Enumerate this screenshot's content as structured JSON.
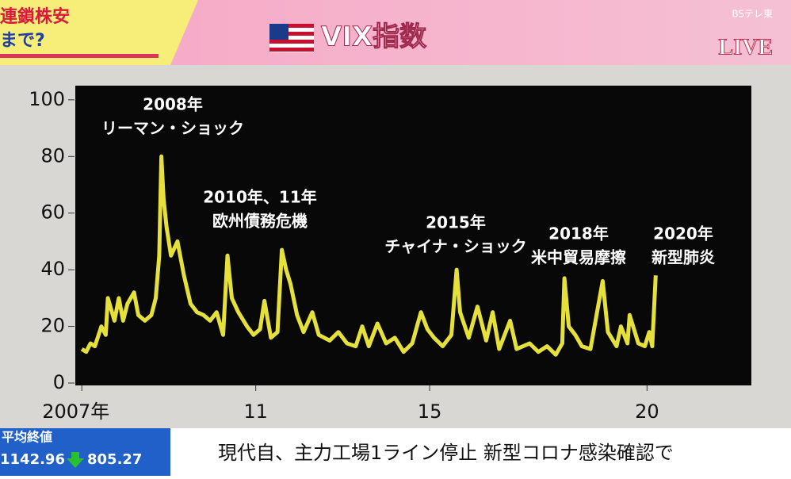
{
  "header": {
    "left_top": "連鎖株安",
    "left_bottom": "まで?",
    "live": "LIVE",
    "channel": "BSテレ東"
  },
  "chart_data": {
    "type": "line",
    "title": "VIX指数",
    "color": "#e6e03a",
    "x": [
      2007.0,
      2007.1,
      2007.2,
      2007.3,
      2007.45,
      2007.55,
      2007.6,
      2007.75,
      2007.85,
      2007.95,
      2008.05,
      2008.2,
      2008.3,
      2008.45,
      2008.6,
      2008.7,
      2008.78,
      2008.83,
      2008.88,
      2008.95,
      2009.05,
      2009.2,
      2009.35,
      2009.5,
      2009.65,
      2009.8,
      2009.95,
      2010.1,
      2010.25,
      2010.35,
      2010.45,
      2010.6,
      2010.8,
      2010.95,
      2011.1,
      2011.2,
      2011.35,
      2011.5,
      2011.6,
      2011.7,
      2011.8,
      2011.95,
      2012.1,
      2012.3,
      2012.45,
      2012.7,
      2012.9,
      2013.1,
      2013.3,
      2013.45,
      2013.6,
      2013.8,
      2014.0,
      2014.2,
      2014.4,
      2014.6,
      2014.8,
      2014.95,
      2015.1,
      2015.3,
      2015.5,
      2015.62,
      2015.7,
      2015.9,
      2016.1,
      2016.3,
      2016.45,
      2016.6,
      2016.85,
      2017.0,
      2017.3,
      2017.5,
      2017.7,
      2017.9,
      2018.05,
      2018.1,
      2018.2,
      2018.35,
      2018.5,
      2018.7,
      2018.85,
      2018.98,
      2019.1,
      2019.3,
      2019.4,
      2019.55,
      2019.6,
      2019.8,
      2019.95,
      2020.05,
      2020.12,
      2020.2
    ],
    "values": [
      12,
      11,
      14,
      13,
      20,
      17,
      30,
      22,
      30,
      22,
      28,
      32,
      24,
      22,
      24,
      30,
      45,
      80,
      65,
      55,
      45,
      50,
      38,
      28,
      25,
      24,
      22,
      25,
      17,
      45,
      30,
      25,
      20,
      17,
      19,
      29,
      16,
      18,
      47,
      40,
      35,
      24,
      18,
      25,
      17,
      15,
      18,
      14,
      13,
      20,
      13,
      21,
      14,
      16,
      11,
      14,
      25,
      19,
      16,
      13,
      17,
      40,
      25,
      16,
      27,
      15,
      25,
      12,
      22,
      12,
      14,
      11,
      13,
      10,
      14,
      37,
      20,
      17,
      13,
      12,
      25,
      36,
      18,
      13,
      20,
      14,
      24,
      14,
      13,
      18,
      13,
      38
    ],
    "xlim": [
      2006.85,
      2022.4
    ],
    "ylim": [
      0,
      105
    ],
    "xticks": [
      {
        "value": 2007,
        "label": "2007年"
      },
      {
        "value": 2011,
        "label": "11"
      },
      {
        "value": 2015,
        "label": "15"
      },
      {
        "value": 2020,
        "label": "20"
      }
    ],
    "yticks": [
      0,
      20,
      40,
      60,
      80,
      100
    ],
    "annotations": [
      {
        "year": "2008年",
        "event": "リーマン・ショック"
      },
      {
        "year": "2010年、11年",
        "event": "欧州債務危機"
      },
      {
        "year": "2015年",
        "event": "チャイナ・ショック"
      },
      {
        "year": "2018年",
        "event": "米中貿易摩擦"
      },
      {
        "year": "2020年",
        "event": "新型肺炎"
      }
    ]
  },
  "ticker": {
    "label": "平均終値",
    "prev": "1142.96",
    "value": "805.27",
    "headline": "現代自、主力工場1ライン停止 新型コロナ感染確認で"
  }
}
